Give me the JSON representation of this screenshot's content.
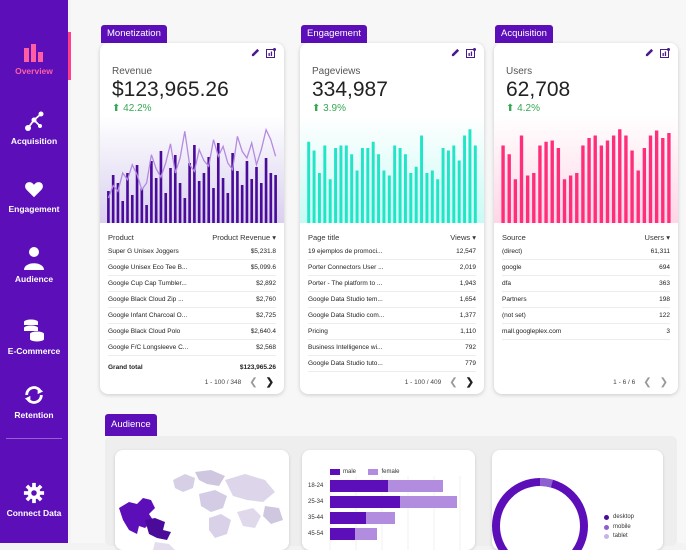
{
  "sidebar": {
    "items": [
      {
        "label": "Overview"
      },
      {
        "label": "Acquisition"
      },
      {
        "label": "Engagement"
      },
      {
        "label": "Audience"
      },
      {
        "label": "E-Commerce"
      },
      {
        "label": "Retention"
      },
      {
        "label": "Connect Data"
      }
    ]
  },
  "colors": {
    "brand": "#5c0fb8",
    "accent": "#ff3d8b",
    "positive": "#35a853"
  },
  "monetization": {
    "tag": "Monetization",
    "metric_label": "Revenue",
    "metric_value": "$123,965.26",
    "delta": "42.2%",
    "col1": "Product",
    "col2": "Product Revenue",
    "rows": [
      {
        "name": "Super G Unisex Joggers",
        "value": "$5,231.8"
      },
      {
        "name": "Google Unisex Eco Tee B...",
        "value": "$5,099.6"
      },
      {
        "name": "Google Cup Cap Tumbler...",
        "value": "$2,892"
      },
      {
        "name": "Google Black Cloud Zip ...",
        "value": "$2,760"
      },
      {
        "name": "Google Infant Charcoal O...",
        "value": "$2,725"
      },
      {
        "name": "Google Black Cloud Polo",
        "value": "$2,640.4"
      },
      {
        "name": "Google F/C Longsleeve C...",
        "value": "$2,568"
      }
    ],
    "total_label": "Grand total",
    "total_value": "$123,965.26",
    "pager": "1 - 100 / 348",
    "chart_data": {
      "type": "bar",
      "series": [
        {
          "name": "bars",
          "values": [
            32,
            48,
            40,
            22,
            50,
            28,
            58,
            35,
            18,
            62,
            45,
            72,
            30,
            55,
            68,
            40,
            25,
            60,
            78,
            42,
            50,
            66,
            35,
            80,
            45,
            30,
            70,
            52,
            38,
            62,
            44,
            56,
            40,
            65,
            50,
            48
          ]
        },
        {
          "name": "line",
          "values": [
            30,
            45,
            38,
            60,
            52,
            70,
            58,
            40,
            48,
            82,
            65,
            55,
            72,
            95,
            60,
            78,
            110,
            70,
            62,
            88,
            75,
            68,
            100,
            80,
            92,
            72,
            64,
            104,
            86,
            78,
            96,
            70,
            88,
            112,
            100,
            80
          ]
        }
      ]
    }
  },
  "engagement": {
    "tag": "Engagement",
    "metric_label": "Pageviews",
    "metric_value": "334,987",
    "delta": "3.9%",
    "col1": "Page title",
    "col2": "Views",
    "rows": [
      {
        "name": "19 ejemplos de promoci...",
        "value": "12,547"
      },
      {
        "name": "Porter Connectors User ...",
        "value": "2,019"
      },
      {
        "name": "Porter - The platform to ...",
        "value": "1,943"
      },
      {
        "name": "Google Data Studio tem...",
        "value": "1,654"
      },
      {
        "name": "Google Data Studio com...",
        "value": "1,377"
      },
      {
        "name": "Pricing",
        "value": "1,110"
      },
      {
        "name": "Business Intelligence wi...",
        "value": "792"
      },
      {
        "name": "Google Data Studio tuto...",
        "value": "779"
      }
    ],
    "pager": "1 - 100 / 409",
    "chart_data": {
      "type": "bar",
      "values": [
        65,
        58,
        40,
        62,
        35,
        60,
        62,
        62,
        55,
        42,
        60,
        60,
        65,
        55,
        42,
        38,
        62,
        60,
        55,
        40,
        45,
        70,
        40,
        42,
        35,
        60,
        58,
        62,
        50,
        70,
        75,
        62
      ]
    }
  },
  "acquisition": {
    "tag": "Acquisition",
    "metric_label": "Users",
    "metric_value": "62,708",
    "delta": "4.2%",
    "col1": "Source",
    "col2": "Users",
    "rows": [
      {
        "name": "(direct)",
        "value": "61,311"
      },
      {
        "name": "google",
        "value": "694"
      },
      {
        "name": "dfa",
        "value": "363"
      },
      {
        "name": "Partners",
        "value": "198"
      },
      {
        "name": "(not set)",
        "value": "122"
      },
      {
        "name": "mall.googleplex.com",
        "value": "3"
      }
    ],
    "pager": "1 - 6 / 6",
    "chart_data": {
      "type": "bar",
      "values": [
        62,
        55,
        35,
        70,
        38,
        40,
        62,
        65,
        66,
        60,
        35,
        38,
        40,
        62,
        68,
        70,
        62,
        66,
        70,
        75,
        70,
        58,
        42,
        60,
        70,
        74,
        68,
        72
      ]
    }
  },
  "audience": {
    "tag": "Audience",
    "legend_male": "male",
    "legend_female": "female",
    "age_groups": [
      "18-24",
      "25-34",
      "35-44",
      "45-54"
    ],
    "device_legend": [
      "desktop",
      "mobile",
      "tablet"
    ],
    "chart_data": {
      "type": "bar",
      "categories": [
        "18-24",
        "25-34",
        "35-44",
        "45-54"
      ],
      "series": [
        {
          "name": "male",
          "values": [
            58,
            70,
            36,
            25
          ]
        },
        {
          "name": "female",
          "values": [
            55,
            57,
            29,
            22
          ]
        }
      ],
      "devices": {
        "desktop": 90,
        "mobile": 8,
        "tablet": 2
      }
    }
  }
}
